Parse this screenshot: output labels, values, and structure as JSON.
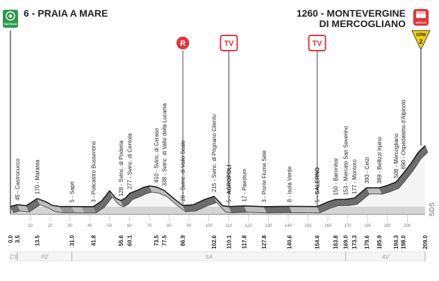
{
  "start": {
    "altitude": "6",
    "name": "PRAIA A MARE",
    "badge": "PARTENZA"
  },
  "finish": {
    "altitude": "1260",
    "name_line1": "MONTEVERGINE",
    "name_line2": "DI MERCOGLIANO",
    "badge": "ARRIVO",
    "gpm_label": "GPM",
    "gpm_category": "2"
  },
  "markers": {
    "r_label": "R",
    "tv_label": "TV"
  },
  "side_label": "SDS",
  "colors": {
    "profile_fill": "#d4d4d4",
    "profile_edge": "#1a1a1a",
    "accent_red": "#e0363a",
    "green_badge": "#2e9a4a",
    "gpm_yellow": "#f0d000",
    "climb_green": "#c8e6a3"
  },
  "chart_data": {
    "type": "area",
    "xlabel": "",
    "ylabel": "",
    "xlim": [
      0,
      209
    ],
    "ylim": [
      0,
      1260
    ],
    "profile": [
      {
        "x": 0,
        "y": 6
      },
      {
        "x": 3.5,
        "y": 45
      },
      {
        "x": 8,
        "y": 20
      },
      {
        "x": 13.5,
        "y": 170
      },
      {
        "x": 18,
        "y": 100
      },
      {
        "x": 21,
        "y": 30
      },
      {
        "x": 25,
        "y": 5
      },
      {
        "x": 31,
        "y": 5
      },
      {
        "x": 36,
        "y": 3
      },
      {
        "x": 41.8,
        "y": 3
      },
      {
        "x": 46,
        "y": 120
      },
      {
        "x": 50,
        "y": 330
      },
      {
        "x": 53,
        "y": 180
      },
      {
        "x": 55.6,
        "y": 128
      },
      {
        "x": 58,
        "y": 180
      },
      {
        "x": 60.1,
        "y": 277
      },
      {
        "x": 64,
        "y": 340
      },
      {
        "x": 67,
        "y": 400
      },
      {
        "x": 70,
        "y": 430
      },
      {
        "x": 73.5,
        "y": 410
      },
      {
        "x": 77.5,
        "y": 338
      },
      {
        "x": 82,
        "y": 180
      },
      {
        "x": 86.9,
        "y": 26
      },
      {
        "x": 92,
        "y": 40
      },
      {
        "x": 98,
        "y": 150
      },
      {
        "x": 102.6,
        "y": 215
      },
      {
        "x": 107,
        "y": 20
      },
      {
        "x": 110.1,
        "y": 5
      },
      {
        "x": 117.8,
        "y": 17
      },
      {
        "x": 127.8,
        "y": 3
      },
      {
        "x": 140.6,
        "y": 8
      },
      {
        "x": 154.6,
        "y": 5
      },
      {
        "x": 160,
        "y": 100
      },
      {
        "x": 163.8,
        "y": 150
      },
      {
        "x": 169,
        "y": 153
      },
      {
        "x": 173.3,
        "y": 177
      },
      {
        "x": 179.6,
        "y": 393
      },
      {
        "x": 185.9,
        "y": 389
      },
      {
        "x": 190,
        "y": 440
      },
      {
        "x": 194.3,
        "y": 508
      },
      {
        "x": 198,
        "y": 690
      },
      {
        "x": 202,
        "y": 900
      },
      {
        "x": 205.5,
        "y": 1120
      },
      {
        "x": 209,
        "y": 1260
      }
    ],
    "km_labels": [
      "0.0",
      "3.5",
      "13.5",
      "31.0",
      "41.8",
      "55.6",
      "60.1",
      "73.5",
      "77.5",
      "86.9",
      "102.6",
      "110.1",
      "117.8",
      "127.8",
      "140.6",
      "154.6",
      "163.8",
      "169.0",
      "173.3",
      "179.6",
      "185.9",
      "194.3",
      "198.0",
      "209.0"
    ],
    "places": [
      {
        "x": 3.5,
        "y": 45,
        "alt": "45",
        "name": "Castrocucco",
        "bold": false
      },
      {
        "x": 13.5,
        "y": 170,
        "alt": "170",
        "name": "Maratea",
        "bold": false
      },
      {
        "x": 31.0,
        "y": 5,
        "alt": "5",
        "name": "Sapri",
        "bold": false
      },
      {
        "x": 41.8,
        "y": 3,
        "alt": "3",
        "name": "Policastro Bussentino",
        "bold": false
      },
      {
        "x": 55.6,
        "y": 128,
        "alt": "128",
        "name": "Svinc. di Poderia",
        "bold": false
      },
      {
        "x": 60.1,
        "y": 277,
        "alt": "277",
        "name": "Svinc. di Centola",
        "bold": false
      },
      {
        "x": 73.5,
        "y": 410,
        "alt": "410",
        "name": "Svinc. di Ceraso",
        "bold": false
      },
      {
        "x": 77.5,
        "y": 338,
        "alt": "338",
        "name": "Svinc. di Vallo della Lucania",
        "bold": false
      },
      {
        "x": 86.9,
        "y": 26,
        "alt": "26",
        "name": "Svinc. di Vallo Scalo",
        "bold": false
      },
      {
        "x": 102.6,
        "y": 215,
        "alt": "215",
        "name": "Svinc. di Prignano Cilento",
        "bold": false
      },
      {
        "x": 110.1,
        "y": 5,
        "alt": "5",
        "name": "AGROPOLI",
        "bold": true
      },
      {
        "x": 117.8,
        "y": 17,
        "alt": "17",
        "name": "Paestum",
        "bold": false
      },
      {
        "x": 127.8,
        "y": 3,
        "alt": "3",
        "name": "Ponte Fiume Sele",
        "bold": false
      },
      {
        "x": 140.6,
        "y": 8,
        "alt": "8",
        "name": "Isola Verde",
        "bold": false
      },
      {
        "x": 154.6,
        "y": 5,
        "alt": "5",
        "name": "SALERNO",
        "bold": true
      },
      {
        "x": 163.8,
        "y": 150,
        "alt": "150",
        "name": "Baronissi",
        "bold": false
      },
      {
        "x": 169.0,
        "y": 153,
        "alt": "153",
        "name": "Mercato San Severino",
        "bold": false
      },
      {
        "x": 173.3,
        "y": 177,
        "alt": "177",
        "name": "Montoro",
        "bold": false
      },
      {
        "x": 179.6,
        "y": 393,
        "alt": "393",
        "name": "Celzi",
        "bold": false
      },
      {
        "x": 185.9,
        "y": 389,
        "alt": "389",
        "name": "Bellizzi Irpino",
        "bold": false
      },
      {
        "x": 194.3,
        "y": 508,
        "alt": "508",
        "name": "Mercogliano",
        "bold": false
      },
      {
        "x": 198.0,
        "y": 690,
        "alt": "690",
        "name": "Ospedaletto d'Alpinolo",
        "bold": false
      }
    ],
    "ticks": [
      "10",
      "20",
      "30",
      "40",
      "50",
      "60",
      "70",
      "80",
      "90",
      "100",
      "110",
      "120",
      "130",
      "140",
      "150",
      "160",
      "170",
      "180",
      "190",
      "200"
    ],
    "markers": [
      {
        "x": 86.9,
        "label": "R",
        "style": "circle"
      },
      {
        "x": 110.1,
        "label": "TV",
        "style": "box"
      },
      {
        "x": 154.6,
        "label": "TV",
        "style": "box"
      }
    ],
    "regions": [
      {
        "label": "CS",
        "from": 0,
        "to": 3.5
      },
      {
        "label": "PZ",
        "from": 3.5,
        "to": 31
      },
      {
        "label": "SA",
        "from": 31,
        "to": 169
      },
      {
        "label": "AV",
        "from": 169,
        "to": 209
      }
    ]
  }
}
